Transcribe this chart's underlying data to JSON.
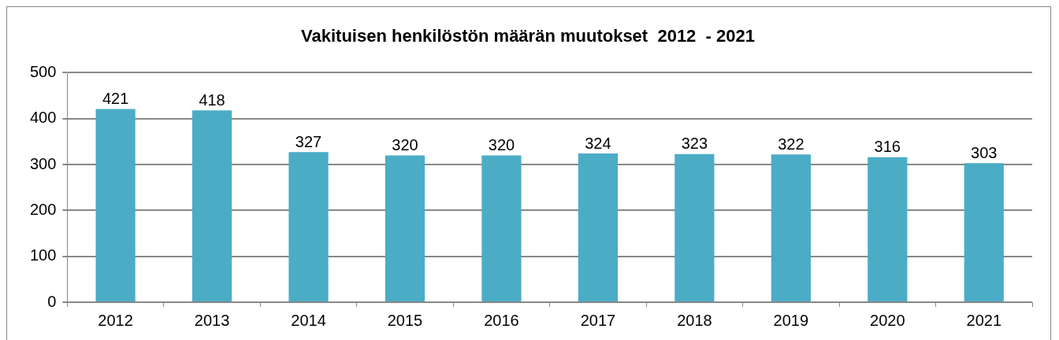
{
  "chart_data": {
    "type": "bar",
    "title": "Vakituisen henkilöstön määrän muutokset  2012  - 2021",
    "categories": [
      "2012",
      "2013",
      "2014",
      "2015",
      "2016",
      "2017",
      "2018",
      "2019",
      "2020",
      "2021"
    ],
    "values": [
      421,
      418,
      327,
      320,
      320,
      324,
      323,
      322,
      316,
      303
    ],
    "color": "#4bacc6",
    "ylim": [
      0,
      500
    ],
    "yticks": [
      0,
      100,
      200,
      300,
      400,
      500
    ],
    "grid": "y",
    "data_labels": true,
    "legend": false
  }
}
